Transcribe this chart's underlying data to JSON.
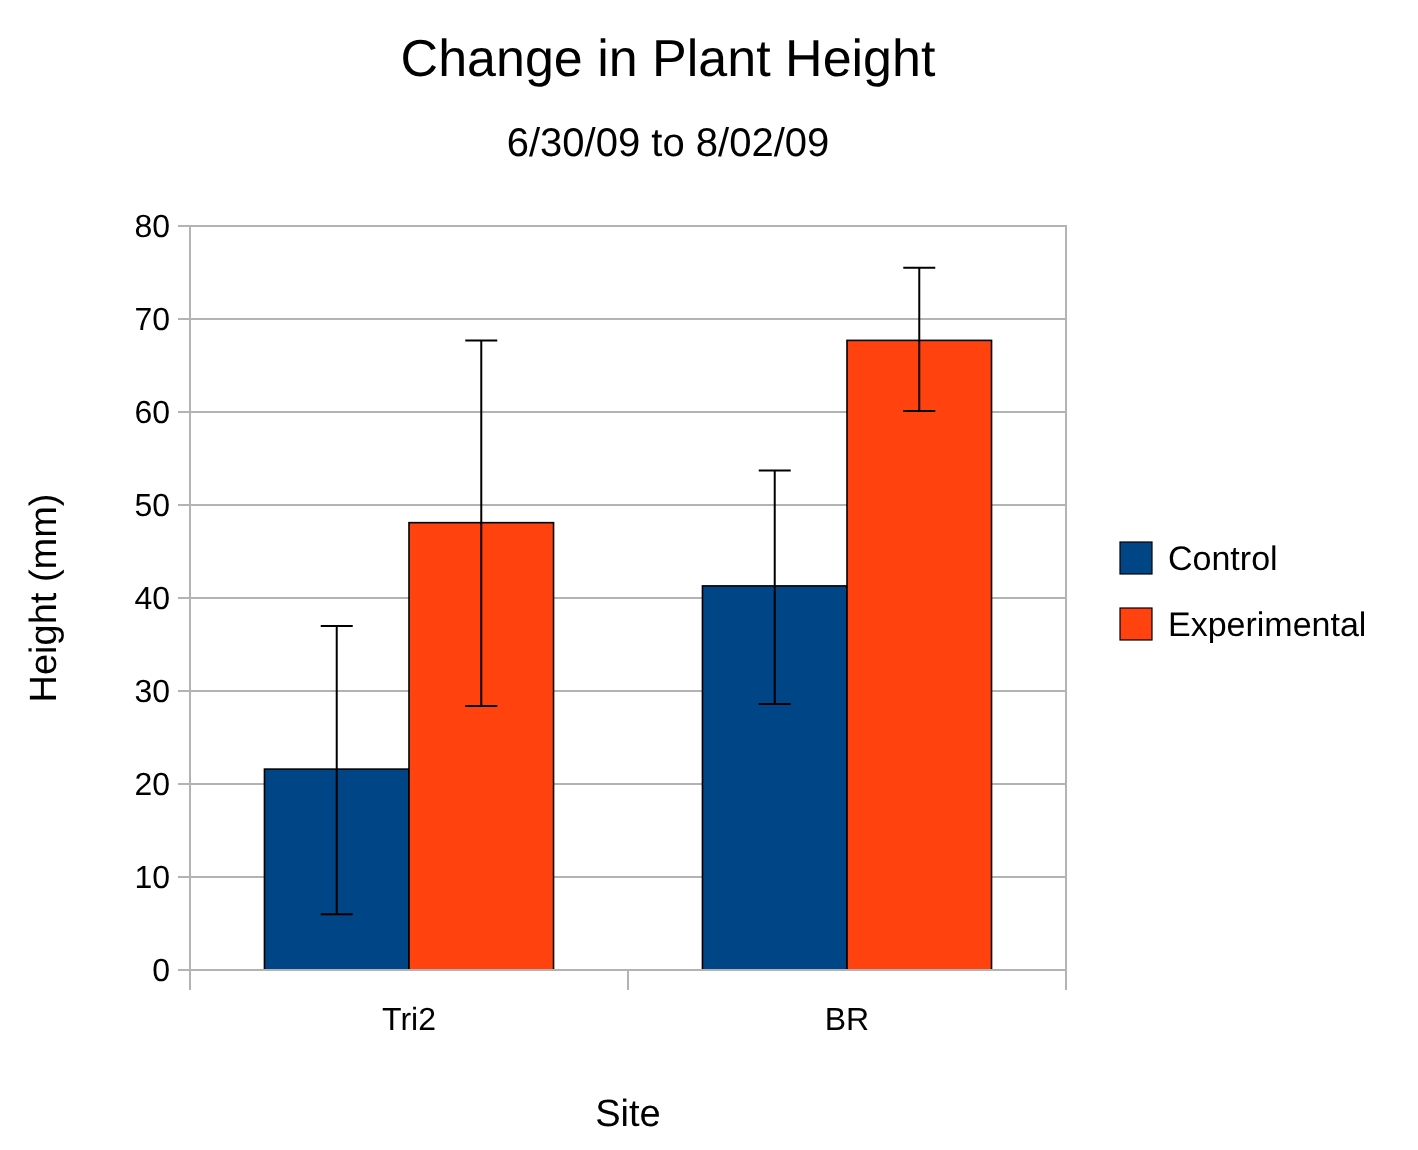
{
  "chart_data": {
    "type": "bar",
    "title": "Change in Plant Height",
    "subtitle": "6/30/09 to 8/02/09",
    "xlabel": "Site",
    "ylabel": "Height (mm)",
    "categories": [
      "Tri2",
      "BR"
    ],
    "series": [
      {
        "name": "Control",
        "color": "#004586",
        "values": [
          21.6,
          41.3
        ],
        "errors": [
          [
            6,
            37
          ],
          [
            28.6,
            53.7
          ]
        ]
      },
      {
        "name": "Experimental",
        "color": "#ff420e",
        "values": [
          48.1,
          67.7
        ],
        "errors": [
          [
            28.4,
            67.7
          ],
          [
            60.1,
            75.5
          ]
        ]
      }
    ],
    "ylim": [
      0,
      80
    ],
    "yticks": [
      0,
      10,
      20,
      30,
      40,
      50,
      60,
      70,
      80
    ],
    "grid": "y",
    "legend": "right"
  }
}
